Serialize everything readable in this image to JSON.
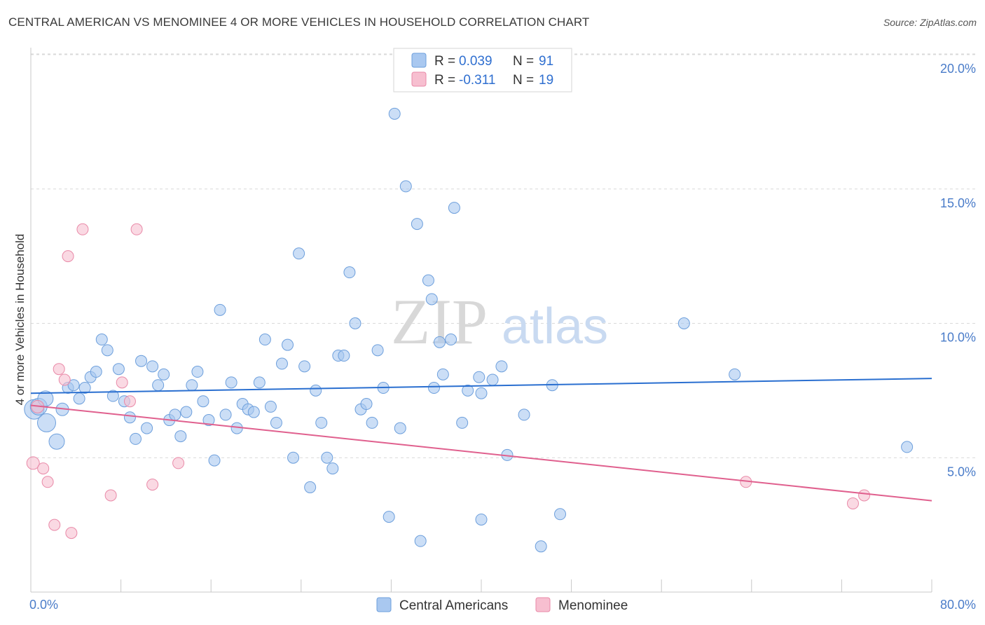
{
  "title": "CENTRAL AMERICAN VS MENOMINEE 4 OR MORE VEHICLES IN HOUSEHOLD CORRELATION CHART",
  "source": "Source: ZipAtlas.com",
  "colors": {
    "blue_fill": "#a9c8f0",
    "blue_stroke": "#6d9fdc",
    "blue_line": "#2a6fd0",
    "pink_fill": "#f7bfd0",
    "pink_stroke": "#e98aa8",
    "pink_line": "#e0608e",
    "grid": "#d9d9d9",
    "tick_text": "#4a7cc9"
  },
  "legend": {
    "rows": [
      {
        "r_label": "R = ",
        "r_value": "0.039",
        "n_label": "N = ",
        "n_value": "91",
        "color": "blue"
      },
      {
        "r_label": "R = ",
        "r_value": "-0.311",
        "n_label": "N = ",
        "n_value": "19",
        "color": "pink"
      }
    ]
  },
  "chart_data": {
    "type": "scatter",
    "title": "CENTRAL AMERICAN VS MENOMINEE 4 OR MORE VEHICLES IN HOUSEHOLD CORRELATION CHART",
    "xlabel": "",
    "ylabel": "4 or more Vehicles in Household",
    "xlim": [
      0,
      80
    ],
    "ylim": [
      0,
      20
    ],
    "x_tick_labels": [
      "0.0%",
      "80.0%"
    ],
    "y_ticks": [
      5,
      10,
      15,
      20
    ],
    "y_tick_labels": [
      "5.0%",
      "10.0%",
      "15.0%",
      "20.0%"
    ],
    "grid": true,
    "legend_position": "top-center",
    "watermark": {
      "zip": "ZIP",
      "atlas": "atlas"
    },
    "series": [
      {
        "name": "Central Americans",
        "color": "blue",
        "trend": {
          "x0": 0,
          "y0": 7.4,
          "x1": 80,
          "y1": 7.95
        },
        "points": [
          [
            0.3,
            6.8,
            14
          ],
          [
            0.7,
            6.9,
            12
          ],
          [
            1.3,
            7.2,
            11
          ],
          [
            1.4,
            6.3,
            13
          ],
          [
            2.3,
            5.6,
            11
          ],
          [
            2.8,
            6.8,
            9
          ],
          [
            3.3,
            7.6,
            8
          ],
          [
            3.8,
            7.7,
            8
          ],
          [
            4.3,
            7.2,
            8
          ],
          [
            4.8,
            7.6,
            8
          ],
          [
            5.3,
            8.0,
            8
          ],
          [
            5.8,
            8.2,
            8
          ],
          [
            6.3,
            9.4,
            8
          ],
          [
            6.8,
            9.0,
            8
          ],
          [
            7.3,
            7.3,
            8
          ],
          [
            7.8,
            8.3,
            8
          ],
          [
            8.3,
            7.1,
            8
          ],
          [
            8.8,
            6.5,
            8
          ],
          [
            9.3,
            5.7,
            8
          ],
          [
            9.8,
            8.6,
            8
          ],
          [
            10.3,
            6.1,
            8
          ],
          [
            10.8,
            8.4,
            8
          ],
          [
            11.3,
            7.7,
            8
          ],
          [
            11.8,
            8.1,
            8
          ],
          [
            12.3,
            6.4,
            8
          ],
          [
            12.8,
            6.6,
            8
          ],
          [
            13.3,
            5.8,
            8
          ],
          [
            13.8,
            6.7,
            8
          ],
          [
            14.3,
            7.7,
            8
          ],
          [
            14.8,
            8.2,
            8
          ],
          [
            15.3,
            7.1,
            8
          ],
          [
            15.8,
            6.4,
            8
          ],
          [
            16.3,
            4.9,
            8
          ],
          [
            16.8,
            10.5,
            8
          ],
          [
            17.3,
            6.6,
            8
          ],
          [
            17.8,
            7.8,
            8
          ],
          [
            18.3,
            6.1,
            8
          ],
          [
            18.8,
            7.0,
            8
          ],
          [
            19.3,
            6.8,
            8
          ],
          [
            19.8,
            6.7,
            8
          ],
          [
            20.3,
            7.8,
            8
          ],
          [
            20.8,
            9.4,
            8
          ],
          [
            21.3,
            6.9,
            8
          ],
          [
            21.8,
            6.3,
            8
          ],
          [
            22.3,
            8.5,
            8
          ],
          [
            22.8,
            9.2,
            8
          ],
          [
            23.3,
            5.0,
            8
          ],
          [
            23.8,
            12.6,
            8
          ],
          [
            24.3,
            8.4,
            8
          ],
          [
            24.8,
            3.9,
            8
          ],
          [
            25.3,
            7.5,
            8
          ],
          [
            25.8,
            6.3,
            8
          ],
          [
            26.3,
            5.0,
            8
          ],
          [
            26.8,
            4.6,
            8
          ],
          [
            27.3,
            8.8,
            8
          ],
          [
            27.8,
            8.8,
            8
          ],
          [
            28.3,
            11.9,
            8
          ],
          [
            28.8,
            10.0,
            8
          ],
          [
            29.3,
            6.8,
            8
          ],
          [
            29.8,
            7.0,
            8
          ],
          [
            30.3,
            6.3,
            8
          ],
          [
            30.8,
            9.0,
            8
          ],
          [
            31.3,
            7.6,
            8
          ],
          [
            31.8,
            2.8,
            8
          ],
          [
            32.3,
            17.8,
            8
          ],
          [
            32.8,
            6.1,
            8
          ],
          [
            33.3,
            15.1,
            8
          ],
          [
            34.3,
            13.7,
            8
          ],
          [
            34.6,
            1.9,
            8
          ],
          [
            35.3,
            11.6,
            8
          ],
          [
            35.6,
            10.9,
            8
          ],
          [
            35.8,
            7.6,
            8
          ],
          [
            36.3,
            9.3,
            8
          ],
          [
            36.6,
            8.1,
            8
          ],
          [
            37.3,
            9.4,
            8
          ],
          [
            37.6,
            14.3,
            8
          ],
          [
            38.3,
            6.3,
            8
          ],
          [
            38.8,
            7.5,
            8
          ],
          [
            39.8,
            8.0,
            8
          ],
          [
            40.0,
            7.4,
            8
          ],
          [
            40.0,
            2.7,
            8
          ],
          [
            41.0,
            7.9,
            8
          ],
          [
            41.8,
            8.4,
            8
          ],
          [
            42.3,
            5.1,
            8
          ],
          [
            43.8,
            6.6,
            8
          ],
          [
            45.3,
            1.7,
            8
          ],
          [
            46.3,
            7.7,
            8
          ],
          [
            47.0,
            2.9,
            8
          ],
          [
            58.0,
            10.0,
            8
          ],
          [
            62.5,
            8.1,
            8
          ],
          [
            77.8,
            5.4,
            8
          ]
        ]
      },
      {
        "name": "Menominee",
        "color": "pink",
        "trend": {
          "x0": 0,
          "y0": 6.95,
          "x1": 80,
          "y1": 3.4
        },
        "points": [
          [
            0.2,
            4.8,
            9
          ],
          [
            0.6,
            6.9,
            9
          ],
          [
            1.1,
            4.6,
            8
          ],
          [
            1.5,
            4.1,
            8
          ],
          [
            2.5,
            8.3,
            8
          ],
          [
            3.0,
            7.9,
            8
          ],
          [
            3.3,
            12.5,
            8
          ],
          [
            3.6,
            2.2,
            8
          ],
          [
            2.1,
            2.5,
            8
          ],
          [
            4.6,
            13.5,
            8
          ],
          [
            7.1,
            3.6,
            8
          ],
          [
            8.1,
            7.8,
            8
          ],
          [
            8.8,
            7.1,
            8
          ],
          [
            9.4,
            13.5,
            8
          ],
          [
            10.8,
            4.0,
            8
          ],
          [
            13.1,
            4.8,
            8
          ],
          [
            63.5,
            4.1,
            8
          ],
          [
            73.0,
            3.3,
            8
          ],
          [
            74.0,
            3.6,
            8
          ]
        ]
      }
    ]
  },
  "bottom_legend": [
    {
      "label": "Central Americans",
      "color": "blue"
    },
    {
      "label": "Menominee",
      "color": "pink"
    }
  ]
}
